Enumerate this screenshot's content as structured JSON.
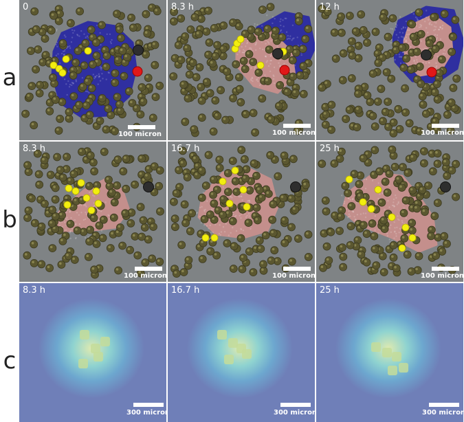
{
  "rows": [
    {
      "label": "a",
      "panels": [
        {
          "time": "0",
          "scale": "100 micron"
        },
        {
          "time": "8.3 h",
          "scale": "100 micron"
        },
        {
          "time": "12 h",
          "scale": "100 micron"
        }
      ]
    },
    {
      "label": "b",
      "panels": [
        {
          "time": "8.3 h",
          "scale": "100 micron"
        },
        {
          "time": "16.7 h",
          "scale": "100 micron"
        },
        {
          "time": "25 h",
          "scale": "100 micron"
        }
      ]
    },
    {
      "label": "c",
      "panels": [
        {
          "time": "8.3 h",
          "scale": "300 micron"
        },
        {
          "time": "16.7 h",
          "scale": "300 micron"
        },
        {
          "time": "25 h",
          "scale": "300 micron"
        }
      ]
    }
  ],
  "colors": {
    "panel_background": "#7f8385",
    "field_background": "#6f7fb8",
    "cell_olive": "#5b5730",
    "blue_mass": "#2f2fa0",
    "pink_mass": "#c48f8c",
    "yellow_cell": "#f2ee10",
    "red_cell": "#e01818",
    "dark_cell": "#2e2e2e"
  }
}
